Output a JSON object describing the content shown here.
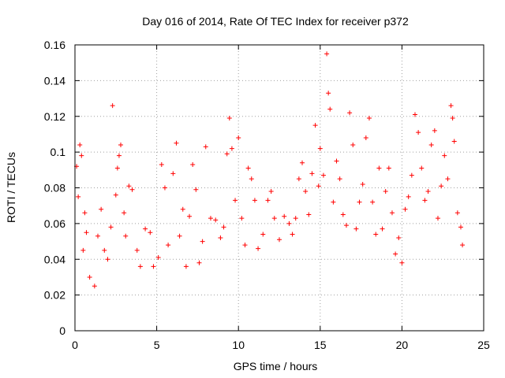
{
  "chart_data": {
    "type": "scatter",
    "title": "Day 016 of 2014, Rate Of TEC Index for receiver p372",
    "xlabel": "GPS time / hours",
    "ylabel": "ROTI / TECUs",
    "xlim": [
      0,
      25
    ],
    "ylim": [
      0,
      0.16
    ],
    "xticks": [
      0,
      5,
      10,
      15,
      20,
      25
    ],
    "xtick_labels": [
      "0",
      "5",
      "10",
      "15",
      "20",
      "25"
    ],
    "yticks": [
      0,
      0.02,
      0.04,
      0.06,
      0.08,
      0.1,
      0.12,
      0.14,
      0.16
    ],
    "ytick_labels": [
      "0",
      "0.02",
      "0.04",
      "0.06",
      "0.08",
      "0.1",
      "0.12",
      "0.14",
      "0.16"
    ],
    "grid": true,
    "marker": "+",
    "color": "#ff0000",
    "series": [
      {
        "name": "ROTI",
        "points": [
          [
            0.1,
            0.092
          ],
          [
            0.2,
            0.075
          ],
          [
            0.3,
            0.104
          ],
          [
            0.4,
            0.098
          ],
          [
            0.5,
            0.045
          ],
          [
            0.6,
            0.066
          ],
          [
            0.7,
            0.055
          ],
          [
            0.9,
            0.03
          ],
          [
            1.2,
            0.025
          ],
          [
            1.4,
            0.053
          ],
          [
            1.6,
            0.068
          ],
          [
            1.8,
            0.045
          ],
          [
            2.0,
            0.04
          ],
          [
            2.2,
            0.058
          ],
          [
            2.3,
            0.126
          ],
          [
            2.5,
            0.076
          ],
          [
            2.6,
            0.091
          ],
          [
            2.7,
            0.098
          ],
          [
            2.8,
            0.104
          ],
          [
            3.0,
            0.066
          ],
          [
            3.1,
            0.053
          ],
          [
            3.3,
            0.081
          ],
          [
            3.5,
            0.079
          ],
          [
            3.8,
            0.045
          ],
          [
            4.0,
            0.036
          ],
          [
            4.3,
            0.057
          ],
          [
            4.6,
            0.055
          ],
          [
            4.8,
            0.036
          ],
          [
            5.1,
            0.041
          ],
          [
            5.3,
            0.093
          ],
          [
            5.5,
            0.08
          ],
          [
            5.7,
            0.048
          ],
          [
            6.0,
            0.088
          ],
          [
            6.2,
            0.105
          ],
          [
            6.4,
            0.053
          ],
          [
            6.6,
            0.068
          ],
          [
            6.8,
            0.036
          ],
          [
            7.0,
            0.064
          ],
          [
            7.2,
            0.093
          ],
          [
            7.4,
            0.079
          ],
          [
            7.6,
            0.038
          ],
          [
            7.8,
            0.05
          ],
          [
            8.0,
            0.103
          ],
          [
            8.3,
            0.063
          ],
          [
            8.6,
            0.062
          ],
          [
            8.9,
            0.052
          ],
          [
            9.1,
            0.058
          ],
          [
            9.3,
            0.099
          ],
          [
            9.45,
            0.119
          ],
          [
            9.6,
            0.102
          ],
          [
            9.8,
            0.073
          ],
          [
            10.0,
            0.108
          ],
          [
            10.2,
            0.063
          ],
          [
            10.4,
            0.048
          ],
          [
            10.6,
            0.091
          ],
          [
            10.8,
            0.085
          ],
          [
            11.0,
            0.073
          ],
          [
            11.2,
            0.046
          ],
          [
            11.5,
            0.054
          ],
          [
            11.8,
            0.073
          ],
          [
            12.0,
            0.078
          ],
          [
            12.2,
            0.063
          ],
          [
            12.5,
            0.051
          ],
          [
            12.8,
            0.064
          ],
          [
            13.1,
            0.06
          ],
          [
            13.3,
            0.054
          ],
          [
            13.5,
            0.063
          ],
          [
            13.7,
            0.085
          ],
          [
            13.9,
            0.094
          ],
          [
            14.1,
            0.078
          ],
          [
            14.3,
            0.065
          ],
          [
            14.5,
            0.088
          ],
          [
            14.7,
            0.115
          ],
          [
            14.9,
            0.081
          ],
          [
            15.0,
            0.102
          ],
          [
            15.2,
            0.087
          ],
          [
            15.4,
            0.155
          ],
          [
            15.5,
            0.133
          ],
          [
            15.6,
            0.124
          ],
          [
            15.8,
            0.072
          ],
          [
            16.0,
            0.095
          ],
          [
            16.2,
            0.085
          ],
          [
            16.4,
            0.065
          ],
          [
            16.6,
            0.059
          ],
          [
            16.8,
            0.122
          ],
          [
            17.0,
            0.104
          ],
          [
            17.2,
            0.057
          ],
          [
            17.4,
            0.072
          ],
          [
            17.6,
            0.082
          ],
          [
            17.8,
            0.108
          ],
          [
            18.0,
            0.119
          ],
          [
            18.2,
            0.072
          ],
          [
            18.4,
            0.054
          ],
          [
            18.6,
            0.091
          ],
          [
            18.8,
            0.057
          ],
          [
            19.0,
            0.078
          ],
          [
            19.2,
            0.091
          ],
          [
            19.4,
            0.066
          ],
          [
            19.6,
            0.043
          ],
          [
            19.8,
            0.052
          ],
          [
            20.0,
            0.038
          ],
          [
            20.2,
            0.068
          ],
          [
            20.4,
            0.075
          ],
          [
            20.6,
            0.087
          ],
          [
            20.8,
            0.121
          ],
          [
            21.0,
            0.111
          ],
          [
            21.2,
            0.091
          ],
          [
            21.4,
            0.073
          ],
          [
            21.6,
            0.078
          ],
          [
            21.8,
            0.104
          ],
          [
            22.0,
            0.112
          ],
          [
            22.2,
            0.063
          ],
          [
            22.4,
            0.081
          ],
          [
            22.6,
            0.098
          ],
          [
            22.8,
            0.085
          ],
          [
            23.0,
            0.126
          ],
          [
            23.1,
            0.119
          ],
          [
            23.2,
            0.106
          ],
          [
            23.4,
            0.066
          ],
          [
            23.6,
            0.058
          ],
          [
            23.7,
            0.048
          ]
        ]
      }
    ]
  }
}
